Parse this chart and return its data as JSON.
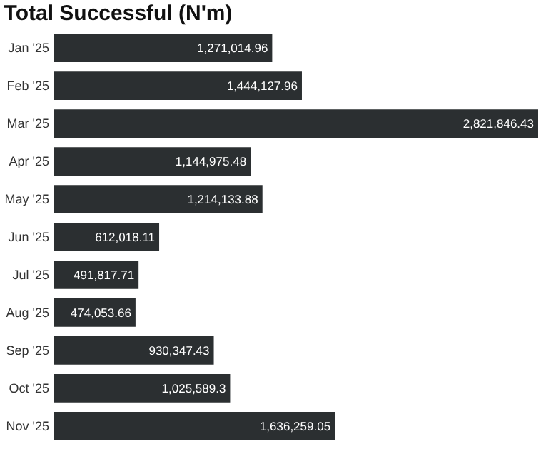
{
  "chart_data": {
    "type": "bar",
    "orientation": "horizontal",
    "title": "Total Successful (N'm)",
    "categories": [
      "Jan '25",
      "Feb '25",
      "Mar '25",
      "Apr '25",
      "May '25",
      "Jun '25",
      "Jul '25",
      "Aug '25",
      "Sep '25",
      "Oct '25",
      "Nov '25"
    ],
    "values": [
      1271014.96,
      1444127.96,
      2821846.43,
      1144975.48,
      1214133.88,
      612018.11,
      491817.71,
      474053.66,
      930347.43,
      1025589.3,
      1636259.05
    ],
    "value_labels": [
      "1,271,014.96",
      "1,444,127.96",
      "2,821,846.43",
      "1,144,975.48",
      "1,214,133.88",
      "612,018.11",
      "491,817.71",
      "474,053.66",
      "930,347.43",
      "1,025,589.3",
      "1,636,259.05"
    ],
    "color": "#2b2f31",
    "xlim": [
      0,
      2821846.43
    ],
    "grid": false
  }
}
